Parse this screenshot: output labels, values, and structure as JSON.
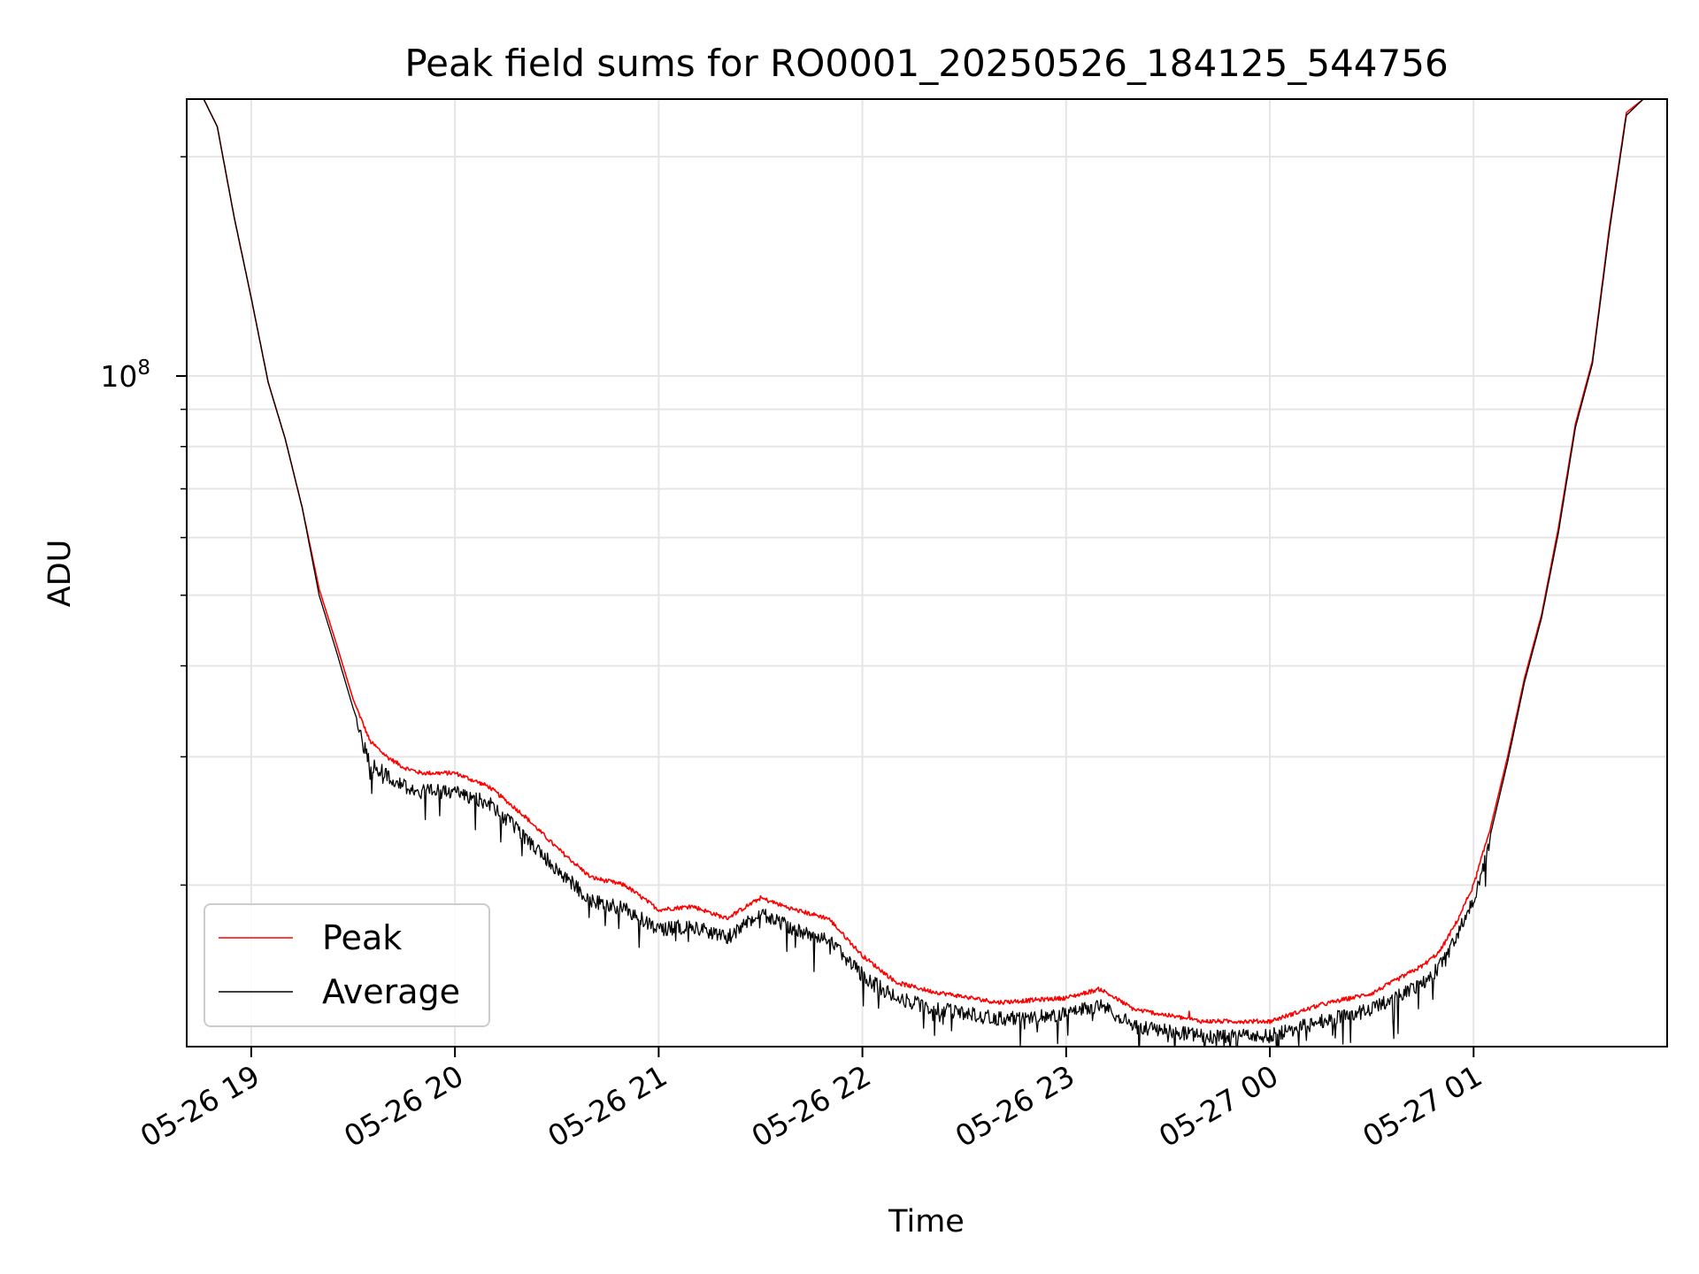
{
  "chart_data": {
    "type": "line",
    "title": "Peak field sums for RO0001_20250526_184125_544756",
    "xlabel": "Time",
    "ylabel": "ADU",
    "x_tick_labels": [
      "05-26 19",
      "05-26 20",
      "05-26 21",
      "05-26 22",
      "05-26 23",
      "05-27 00",
      "05-27 01"
    ],
    "y_tick_labels": [
      "10^8"
    ],
    "xlim": [
      "2025-05-26 18:41",
      "2025-05-27 01:57"
    ],
    "ylim": [
      12000000,
      240000000
    ],
    "y_scale": "log",
    "grid": true,
    "legend_position": "lower left",
    "x_unit": "time (MM-DD HH:MM)",
    "series": [
      {
        "name": "Peak",
        "color": "#ff0000",
        "x": [
          "05-26 18:46",
          "05-26 18:50",
          "05-26 18:55",
          "05-26 19:00",
          "05-26 19:05",
          "05-26 19:10",
          "05-26 19:15",
          "05-26 19:20",
          "05-26 19:25",
          "05-26 19:30",
          "05-26 19:35",
          "05-26 19:40",
          "05-26 19:45",
          "05-26 19:50",
          "05-26 20:00",
          "05-26 20:10",
          "05-26 20:20",
          "05-26 20:30",
          "05-26 20:40",
          "05-26 20:50",
          "05-26 21:00",
          "05-26 21:10",
          "05-26 21:20",
          "05-26 21:30",
          "05-26 21:40",
          "05-26 21:50",
          "05-26 22:00",
          "05-26 22:10",
          "05-26 22:20",
          "05-26 22:40",
          "05-26 23:00",
          "05-26 23:10",
          "05-26 23:20",
          "05-26 23:40",
          "05-27 00:00",
          "05-27 00:15",
          "05-27 00:30",
          "05-27 00:45",
          "05-27 00:50",
          "05-27 00:55",
          "05-27 01:00",
          "05-27 01:05",
          "05-27 01:10",
          "05-27 01:15",
          "05-27 01:20",
          "05-27 01:25",
          "05-27 01:30",
          "05-27 01:35",
          "05-27 01:40",
          "05-27 01:45",
          "05-27 01:50"
        ],
        "y": [
          240000000,
          220000000,
          165000000,
          128000000,
          98000000,
          82000000,
          66000000,
          51000000,
          43000000,
          36000000,
          31500000,
          30000000,
          29000000,
          28500000,
          28500000,
          27300000,
          25000000,
          22500000,
          20500000,
          20000000,
          18500000,
          18700000,
          18000000,
          19200000,
          18500000,
          18000000,
          16000000,
          14700000,
          14300000,
          13800000,
          14000000,
          14400000,
          13500000,
          13000000,
          13000000,
          13700000,
          14200000,
          15500000,
          16200000,
          17800000,
          20000000,
          24000000,
          30000000,
          38500000,
          47000000,
          62000000,
          86000000,
          105000000,
          160000000,
          230000000,
          240000000
        ]
      },
      {
        "name": "Average",
        "color": "#000000",
        "x": [
          "05-26 18:46",
          "05-26 18:50",
          "05-26 18:55",
          "05-26 19:00",
          "05-26 19:05",
          "05-26 19:10",
          "05-26 19:15",
          "05-26 19:20",
          "05-26 19:25",
          "05-26 19:30",
          "05-26 19:35",
          "05-26 19:40",
          "05-26 19:45",
          "05-26 19:50",
          "05-26 20:00",
          "05-26 20:10",
          "05-26 20:20",
          "05-26 20:30",
          "05-26 20:40",
          "05-26 20:50",
          "05-26 21:00",
          "05-26 21:10",
          "05-26 21:20",
          "05-26 21:30",
          "05-26 21:40",
          "05-26 21:50",
          "05-26 22:00",
          "05-26 22:10",
          "05-26 22:20",
          "05-26 22:40",
          "05-26 23:00",
          "05-26 23:10",
          "05-26 23:20",
          "05-26 23:40",
          "05-27 00:00",
          "05-27 00:15",
          "05-27 00:30",
          "05-27 00:45",
          "05-27 00:50",
          "05-27 00:55",
          "05-27 01:00",
          "05-27 01:05",
          "05-27 01:10",
          "05-27 01:15",
          "05-27 01:20",
          "05-27 01:25",
          "05-27 01:30",
          "05-27 01:35",
          "05-27 01:40",
          "05-27 01:45",
          "05-27 01:50"
        ],
        "y": [
          240000000,
          220000000,
          165000000,
          128000000,
          98000000,
          82000000,
          66000000,
          50000000,
          42000000,
          35000000,
          30000000,
          29000000,
          28000000,
          27500000,
          27500000,
          26500000,
          24000000,
          21500000,
          19500000,
          19000000,
          17800000,
          18000000,
          17300000,
          18700000,
          17800000,
          17200000,
          15400000,
          14300000,
          13900000,
          13400000,
          13600000,
          14000000,
          13100000,
          12700000,
          12700000,
          13300000,
          13800000,
          15000000,
          15800000,
          17400000,
          19600000,
          23500000,
          29500000,
          38000000,
          46500000,
          61000000,
          85000000,
          104000000,
          158000000,
          228000000,
          240000000
        ]
      }
    ]
  }
}
